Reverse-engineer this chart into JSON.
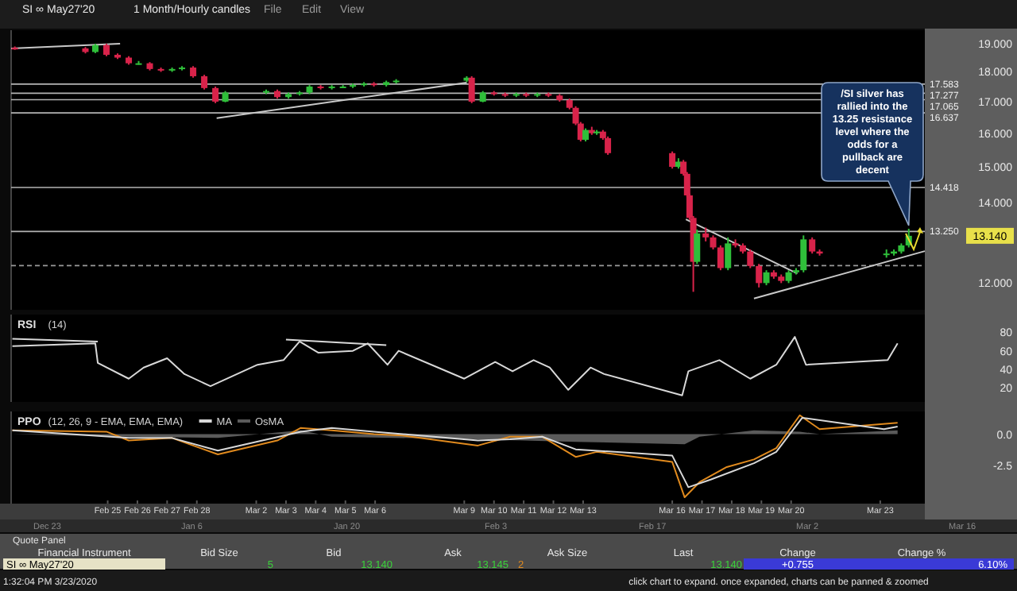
{
  "chart_data": [
    {
      "type": "candlestick",
      "title": "SI ∞ May27'20",
      "subtitle": "1 Month/Hourly candles",
      "log": true,
      "colors": [
        "#d8234a",
        "#d8234a",
        "#2fbf3a",
        "#d8234a",
        "#d8234a",
        "#d8234a",
        "#2fbf3a",
        "#d8234a",
        "#d8234a",
        "#2fbf3a",
        "#2fbf3a",
        "#d8234a",
        "#d8234a",
        "#d8234a",
        "#2fbf3a",
        "#2fbf3a",
        "#d8234a",
        "#2fbf3a",
        "#2fbf3a",
        "#2fbf3a",
        "#d8234a",
        "#2fbf3a",
        "#2fbf3a",
        "#2fbf3a",
        "#2fbf3a",
        "#d8234a",
        "#2fbf3a",
        "#2fbf3a",
        "#2fbf3a",
        "#d8234a",
        "#2fbf3a",
        "#d8234a",
        "#d8234a",
        "#2fbf3a",
        "#d8234a",
        "#2fbf3a",
        "#d8234a",
        "#d8234a",
        "#d8234a",
        "#d8234a",
        "#d8234a",
        "#2fbf3a",
        "#d8234a",
        "#2fbf3a",
        "#d8234a",
        "#d8234a",
        "#d8234a",
        "#2fbf3a",
        "#d8234a",
        "#d8234a",
        "#d8234a",
        "#d8234a",
        "#2fbf3a",
        "#d8234a",
        "#d8234a",
        "#d8234a",
        "#2fbf3a",
        "#d8234a",
        "#d8234a",
        "#d8234a",
        "#d8234a",
        "#2fbf3a",
        "#d8234a",
        "#d8234a",
        "#2fbf3a",
        "#2fbf3a",
        "#2fbf3a",
        "#d8234a",
        "#d8234a",
        "#2fbf3a",
        "#2fbf3a",
        "#2fbf3a",
        "#2fbf3a"
      ],
      "x": [
        "--02-21T21:00",
        "--02-24T06:00",
        "--02-24T14:00",
        "--02-24T23:00",
        "--02-25T08:00",
        "--02-25T17:00",
        "--02-26T01:00",
        "--02-26T10:00",
        "--02-26T19:00",
        "--02-27T04:00",
        "--02-27T12:00",
        "--02-27T21:00",
        "--02-28T06:00",
        "--02-28T15:00",
        "--02-28T23:00",
        "--03-02T08:00",
        "--03-02T17:00",
        "--03-03T02:00",
        "--03-03T11:00",
        "--03-03T19:00",
        "--03-04T04:00",
        "--03-04T13:00",
        "--03-04T22:00",
        "--03-05T06:00",
        "--03-05T15:00",
        "--03-05T23:00",
        "--03-06T09:00",
        "--03-06T17:00",
        "--03-09T02:00",
        "--03-09T06:00",
        "--03-09T15:00",
        "--03-10T00:00",
        "--03-10T09:00",
        "--03-10T18:00",
        "--03-11T02:00",
        "--03-11T11:00",
        "--03-11T20:00",
        "--03-12T05:00",
        "--03-12T13:00",
        "--03-12T18:00",
        "--03-12T22:00",
        "--03-13T02:00",
        "--03-13T07:00",
        "--03-13T11:00",
        "--03-13T16:00",
        "--03-13T20:00",
        "--03-16T00:00",
        "--03-16T05:00",
        "--03-16T09:00",
        "--03-16T12:00",
        "--03-16T14:00",
        "--03-16T17:00",
        "--03-16T20:00",
        "--03-17T03:00",
        "--03-17T09:00",
        "--03-17T15:00",
        "--03-17T21:00",
        "--03-18T03:00",
        "--03-18T09:00",
        "--03-18T15:00",
        "--03-18T22:00",
        "--03-19T04:00",
        "--03-19T10:00",
        "--03-19T16:00",
        "--03-19T22:00",
        "--03-20T04:00",
        "--03-20T10:00",
        "--03-20T17:00",
        "--03-20T23:00",
        "--03-23T05:00",
        "--03-23T11:00",
        "--03-23T17:00",
        "--03-23T23:00"
      ],
      "ohlc": [
        [
          18.85,
          18.9,
          18.78,
          18.83
        ],
        [
          18.83,
          18.88,
          18.65,
          18.7
        ],
        [
          18.7,
          19.0,
          18.66,
          18.95
        ],
        [
          18.95,
          19.0,
          18.55,
          18.6
        ],
        [
          18.6,
          18.65,
          18.45,
          18.5
        ],
        [
          18.5,
          18.55,
          18.25,
          18.3
        ],
        [
          18.3,
          18.38,
          18.25,
          18.3
        ],
        [
          18.3,
          18.34,
          18.05,
          18.1
        ],
        [
          18.1,
          18.15,
          18.0,
          18.05
        ],
        [
          18.05,
          18.15,
          18.0,
          18.1
        ],
        [
          18.1,
          18.2,
          18.05,
          18.15
        ],
        [
          18.15,
          18.2,
          17.8,
          17.85
        ],
        [
          17.85,
          17.9,
          17.4,
          17.45
        ],
        [
          17.45,
          17.5,
          16.95,
          17.0
        ],
        [
          17.0,
          17.35,
          16.98,
          17.3
        ],
        [
          17.3,
          17.4,
          17.25,
          17.35
        ],
        [
          17.35,
          17.4,
          17.1,
          17.15
        ],
        [
          17.15,
          17.3,
          17.1,
          17.25
        ],
        [
          17.25,
          17.35,
          17.2,
          17.3
        ],
        [
          17.3,
          17.55,
          17.25,
          17.5
        ],
        [
          17.5,
          17.55,
          17.4,
          17.45
        ],
        [
          17.45,
          17.55,
          17.4,
          17.5
        ],
        [
          17.5,
          17.55,
          17.45,
          17.5
        ],
        [
          17.5,
          17.6,
          17.45,
          17.55
        ],
        [
          17.55,
          17.65,
          17.5,
          17.6
        ],
        [
          17.6,
          17.65,
          17.5,
          17.55
        ],
        [
          17.55,
          17.7,
          17.5,
          17.65
        ],
        [
          17.65,
          17.75,
          17.6,
          17.7
        ],
        [
          17.7,
          17.85,
          17.65,
          17.8
        ],
        [
          17.8,
          17.85,
          16.95,
          17.0
        ],
        [
          17.0,
          17.35,
          16.98,
          17.3
        ],
        [
          17.3,
          17.35,
          17.2,
          17.25
        ],
        [
          17.25,
          17.3,
          17.15,
          17.2
        ],
        [
          17.2,
          17.3,
          17.15,
          17.25
        ],
        [
          17.25,
          17.3,
          17.15,
          17.2
        ],
        [
          17.2,
          17.3,
          17.15,
          17.25
        ],
        [
          17.25,
          17.3,
          17.15,
          17.2
        ],
        [
          17.2,
          17.25,
          17.0,
          17.05
        ],
        [
          17.05,
          17.1,
          16.75,
          16.8
        ],
        [
          16.8,
          16.85,
          16.25,
          16.3
        ],
        [
          16.3,
          16.35,
          15.75,
          15.8
        ],
        [
          15.8,
          16.15,
          15.75,
          16.1
        ],
        [
          16.1,
          16.2,
          15.95,
          16.0
        ],
        [
          16.0,
          16.1,
          15.95,
          16.05
        ],
        [
          16.05,
          16.1,
          15.8,
          15.85
        ],
        [
          15.85,
          15.9,
          15.35,
          15.4
        ],
        [
          15.4,
          15.45,
          14.95,
          15.0
        ],
        [
          15.0,
          15.25,
          14.95,
          15.15
        ],
        [
          15.15,
          15.2,
          14.75,
          14.8
        ],
        [
          14.8,
          14.85,
          14.15,
          14.2
        ],
        [
          14.2,
          14.25,
          13.55,
          13.6
        ],
        [
          13.6,
          13.65,
          11.8,
          12.5
        ],
        [
          12.5,
          13.3,
          12.45,
          13.2
        ],
        [
          13.2,
          13.35,
          13.0,
          13.1
        ],
        [
          13.1,
          13.15,
          12.8,
          12.85
        ],
        [
          12.85,
          12.9,
          12.3,
          12.35
        ],
        [
          12.35,
          13.1,
          12.3,
          12.95
        ],
        [
          12.95,
          13.05,
          12.85,
          12.9
        ],
        [
          12.9,
          12.95,
          12.7,
          12.75
        ],
        [
          12.75,
          12.8,
          12.35,
          12.4
        ],
        [
          12.4,
          12.45,
          11.9,
          12.0
        ],
        [
          12.0,
          12.3,
          11.95,
          12.25
        ],
        [
          12.25,
          12.3,
          12.1,
          12.15
        ],
        [
          12.15,
          12.2,
          12.0,
          12.05
        ],
        [
          12.05,
          12.3,
          12.0,
          12.25
        ],
        [
          12.25,
          12.35,
          12.2,
          12.3
        ],
        [
          12.3,
          13.15,
          12.25,
          13.05
        ],
        [
          13.05,
          13.1,
          12.7,
          12.75
        ],
        [
          12.75,
          12.8,
          12.65,
          12.7
        ],
        [
          12.7,
          12.8,
          12.6,
          12.7
        ],
        [
          12.7,
          12.8,
          12.65,
          12.75
        ],
        [
          12.75,
          12.95,
          12.7,
          12.9
        ],
        [
          12.9,
          13.32,
          12.85,
          13.14
        ]
      ],
      "series": [
        {
          "type": "line",
          "color": "#c8c8c8",
          "x": [
            "--02-21T18:00",
            "--02-25T10:00"
          ],
          "values": [
            18.83,
            19.0
          ]
        },
        {
          "type": "line",
          "color": "#c8c8c8",
          "x": [
            "--02-28T16:00",
            "--03-09T02:00"
          ],
          "values": [
            16.47,
            17.63
          ]
        },
        {
          "type": "line",
          "color": "#c8c8c8",
          "x": [
            "--03-16T11:00",
            "--03-20T05:00"
          ],
          "values": [
            13.56,
            12.22
          ]
        },
        {
          "type": "line",
          "color": "#c8c8c8",
          "x": [
            "--03-18T18:00",
            "--03-24T12:00"
          ],
          "values": [
            11.65,
            12.76
          ]
        }
      ],
      "xlim": [
        "--02-21T18:00",
        "--03-24T12:00"
      ],
      "ylim": [
        11.4,
        19.5
      ],
      "yticks": [
        {
          "value": 12,
          "label": "12.000"
        },
        {
          "value": 14,
          "label": "14.000"
        },
        {
          "value": 15,
          "label": "15.000"
        },
        {
          "value": 16,
          "label": "16.000"
        },
        {
          "value": 17,
          "label": "17.000"
        },
        {
          "value": 18,
          "label": "18.000"
        },
        {
          "value": 19,
          "label": "19.000"
        }
      ],
      "tick_labels": "y",
      "ref_lines": [
        {
          "axis": "y",
          "value": 17.583,
          "label": "17.583",
          "color": "#b4b4b4"
        },
        {
          "axis": "y",
          "value": 17.277,
          "label": "17.277",
          "color": "#b4b4b4"
        },
        {
          "axis": "y",
          "value": 17.065,
          "label": "17.065",
          "color": "#b4b4b4"
        },
        {
          "axis": "y",
          "value": 16.637,
          "label": "16.637",
          "color": "#b4b4b4"
        },
        {
          "axis": "y",
          "value": 14.418,
          "label": "14.418",
          "color": "#b4b4b4"
        },
        {
          "axis": "y",
          "value": 13.25,
          "label": "13.250",
          "color": "#b4b4b4"
        },
        {
          "axis": "y",
          "value": 12.41,
          "color": "#9a9a9a",
          "line_style": "dashed"
        }
      ],
      "annotations": [
        "File",
        "Edit",
        "View",
        "/SI silver has rallied into the 13.25 resistance level where the odds for a pullback are decent",
        "13.140"
      ]
    },
    {
      "type": "line",
      "title": "RSI",
      "subtitle": "(14)",
      "legend": "top left",
      "xlim": [
        "--02-21T18:00",
        "--03-24T12:00"
      ],
      "ylim": [
        5,
        99
      ],
      "yticks": [
        20,
        40,
        60,
        80
      ],
      "tick_labels": "y",
      "series": [
        {
          "color": "#d8d8d8",
          "x": [
            "--02-21T19:00",
            "--02-24T14:00",
            "--02-24T16:00",
            "--02-25T17:00",
            "--02-26T05:00",
            "--02-27T00:00",
            "--02-27T14:00",
            "--02-28T11:00",
            "--03-02T01:00",
            "--03-02T22:00",
            "--03-03T11:00",
            "--03-04T02:00",
            "--03-05T06:00",
            "--03-05T18:00",
            "--03-06T10:00",
            "--03-06T19:00",
            "--03-09T00:00",
            "--03-10T01:00",
            "--03-10T15:00",
            "--03-11T08:00",
            "--03-11T21:00",
            "--03-12T12:00",
            "--03-13T06:00",
            "--03-13T17:00",
            "--03-16T08:00",
            "--03-16T13:00",
            "--03-17T14:00",
            "--03-18T15:00",
            "--03-19T12:00",
            "--03-20T03:00",
            "--03-20T12:00",
            "--03-23T06:00",
            "--03-23T14:00"
          ],
          "values": [
            65,
            68,
            47,
            30,
            42,
            52,
            35,
            22,
            45,
            50,
            70,
            58,
            60,
            68,
            45,
            60,
            30,
            48,
            38,
            50,
            42,
            18,
            42,
            35,
            12,
            38,
            50,
            30,
            45,
            75,
            45,
            50,
            68
          ]
        },
        {
          "type": "line",
          "color": "#d8d8d8",
          "x": [
            "--02-21T19:00",
            "--02-24T16:00"
          ],
          "values": [
            73,
            70
          ]
        },
        {
          "type": "line",
          "color": "#d8d8d8",
          "x": [
            "--03-03T00:00",
            "--03-06T09:00"
          ],
          "values": [
            72,
            66
          ]
        }
      ]
    },
    {
      "type": "line",
      "title": "PPO",
      "subtitle": "(12, 26, 9 - EMA, EMA, EMA)",
      "legend": "top left",
      "xlim": [
        "--02-21T18:00",
        "--03-24T12:00"
      ],
      "ylim": [
        -5.5,
        1.8
      ],
      "yticks": [
        {
          "value": 0,
          "label": "0.0"
        },
        {
          "value": -2.5,
          "label": "-2.5"
        }
      ],
      "xticks": [
        {
          "value": "--02-25",
          "label": "Feb 25"
        },
        {
          "value": "--02-26",
          "label": "Feb 26"
        },
        {
          "value": "--02-27",
          "label": "Feb 27"
        },
        {
          "value": "--02-28",
          "label": "Feb 28"
        },
        {
          "value": "--03-02",
          "label": "Mar 2"
        },
        {
          "value": "--03-03",
          "label": "Mar 3"
        },
        {
          "value": "--03-04",
          "label": "Mar 4"
        },
        {
          "value": "--03-05",
          "label": "Mar 5"
        },
        {
          "value": "--03-06",
          "label": "Mar 6"
        },
        {
          "value": "--03-09",
          "label": "Mar 9"
        },
        {
          "value": "--03-10",
          "label": "Mar 10"
        },
        {
          "value": "--03-11",
          "label": "Mar 11"
        },
        {
          "value": "--03-12",
          "label": "Mar 12"
        },
        {
          "value": "--03-13",
          "label": "Mar 13"
        },
        {
          "value": "--03-16",
          "label": "Mar 16"
        },
        {
          "value": "--03-17",
          "label": "Mar 17"
        },
        {
          "value": "--03-18",
          "label": "Mar 18"
        },
        {
          "value": "--03-19",
          "label": "Mar 19"
        },
        {
          "value": "--03-20",
          "label": "Mar 20"
        },
        {
          "value": "--03-23",
          "label": "Mar 23"
        }
      ],
      "series": [
        {
          "color": "#e08a1e",
          "x": [
            "--02-21T19:00",
            "--02-24T23:00",
            "--02-25T17:00",
            "--02-27T04:00",
            "--02-28T17:00",
            "--03-02T17:00",
            "--03-03T12:00",
            "--03-04T13:00",
            "--03-05T23:00",
            "--03-06T22:00",
            "--03-09T11:00",
            "--03-10T13:00",
            "--03-11T15:00",
            "--03-12T18:00",
            "--03-13T11:00",
            "--03-16T00:00",
            "--03-16T10:00",
            "--03-16T22:00",
            "--03-17T20:00",
            "--03-18T18:00",
            "--03-19T12:00",
            "--03-20T07:00",
            "--03-20T23:00",
            "--03-23T14:00"
          ],
          "values": [
            0.3,
            0.2,
            -0.5,
            -0.3,
            -1.6,
            -0.5,
            0.5,
            0.3,
            0,
            -0.1,
            -0.9,
            -0.2,
            -0.2,
            -1.8,
            -1.4,
            -2.2,
            -5.0,
            -3.8,
            -2.6,
            -2.0,
            -1.1,
            1.5,
            0.4,
            0.9
          ]
        },
        {
          "name": "MA",
          "color": "#d8d8d8",
          "x": [
            "--02-21T19:00",
            "--02-25T17:00",
            "--02-27T04:00",
            "--02-28T17:00",
            "--03-03T12:00",
            "--03-04T13:00",
            "--03-05T23:00",
            "--03-09T11:00",
            "--03-10T13:00",
            "--03-11T15:00",
            "--03-12T18:00",
            "--03-16T00:00",
            "--03-16T13:00",
            "--03-17T07:00",
            "--03-18T18:00",
            "--03-19T12:00",
            "--03-20T09:00",
            "--03-23T03:00",
            "--03-23T14:00"
          ],
          "values": [
            0.3,
            -0.3,
            -0.3,
            -1.3,
            0.2,
            0.5,
            0.2,
            -0.5,
            -0.4,
            -0.2,
            -1.2,
            -1.7,
            -4.2,
            -3.6,
            -2.3,
            -1.4,
            1.3,
            0.4,
            0.6
          ]
        },
        {
          "type": "area",
          "name": "OsMA",
          "color": "#5a5a5a",
          "x": [
            "--02-21T19:00",
            "--02-25T17:00",
            "--02-28T17:00",
            "--03-03T12:00",
            "--03-04T13:00",
            "--03-09T11:00",
            "--03-12T18:00",
            "--03-16T10:00",
            "--03-16T22:00",
            "--03-18T18:00",
            "--03-20T07:00",
            "--03-20T23:00",
            "--03-23T14:00"
          ],
          "values": [
            0,
            -0.2,
            -0.3,
            0.3,
            -0.2,
            -0.4,
            -0.6,
            -0.8,
            -0.2,
            0.3,
            0.2,
            0,
            0.3
          ]
        }
      ]
    },
    {
      "type": "other",
      "title": "Quote Panel",
      "annotations": [
        "Dec 23",
        "Jan 6",
        "Jan 20",
        "Feb 3",
        "Feb 17",
        "Mar 2",
        "Mar 16",
        "Financial Instrument",
        "Bid Size",
        "Bid",
        "Ask",
        "Ask Size",
        "Last",
        "Change",
        "Change %",
        "SI ∞ May27'20",
        "5",
        "13.140",
        "13.145",
        "2",
        "13.140",
        "+0.755",
        "6.10%",
        "1:32:04 PM 3/23/2020",
        "click chart to expand. once expanded, charts can be panned & zoomed"
      ]
    }
  ]
}
